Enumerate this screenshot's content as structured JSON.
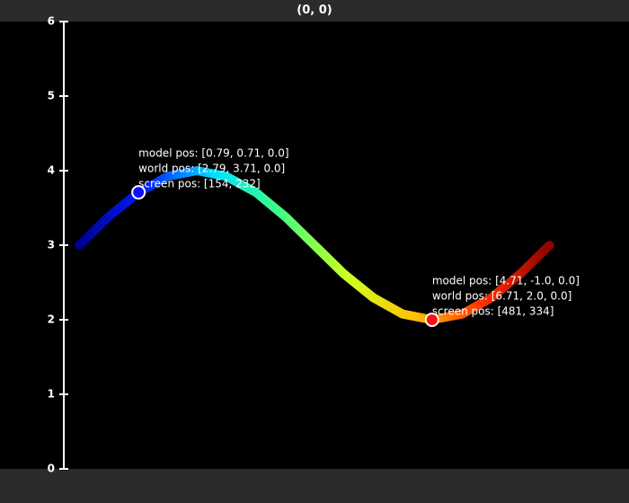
{
  "chart_data": {
    "type": "line",
    "title": "(0, 0)",
    "x": [
      2,
      2.39,
      2.79,
      3.18,
      3.57,
      3.96,
      4.36,
      4.75,
      5.14,
      5.53,
      5.93,
      6.32,
      6.71,
      7.11,
      7.5,
      7.89,
      8.28
    ],
    "values": [
      3,
      3.383,
      3.707,
      3.924,
      4,
      3.924,
      3.707,
      3.383,
      3,
      2.617,
      2.293,
      2.076,
      2,
      2.076,
      2.293,
      2.617,
      3
    ],
    "colors": [
      "#000090",
      "#0020ff",
      "#00e0ff",
      "#40ff80",
      "#d0ff20",
      "#ffc000",
      "#ff3000",
      "#900000"
    ],
    "xlim": [
      0.94,
      9.34
    ],
    "ylim": [
      0,
      6
    ],
    "yticks": [
      0,
      1,
      2,
      3,
      4,
      5,
      6
    ],
    "markers": [
      {
        "x": 2.79,
        "y": 3.71,
        "color": "#1010ff",
        "label": [
          "model pos: [0.79, 0.71, 0.0]",
          "world pos: [2.79, 3.71, 0.0]",
          "screen pos: [154, 232]"
        ]
      },
      {
        "x": 6.71,
        "y": 2.0,
        "color": "#ff1010",
        "label": [
          "model pos: [4.71, -1.0, 0.0]",
          "world pos: [6.71, 2.0, 0.0]",
          "screen pos: [481, 334]"
        ]
      }
    ]
  }
}
